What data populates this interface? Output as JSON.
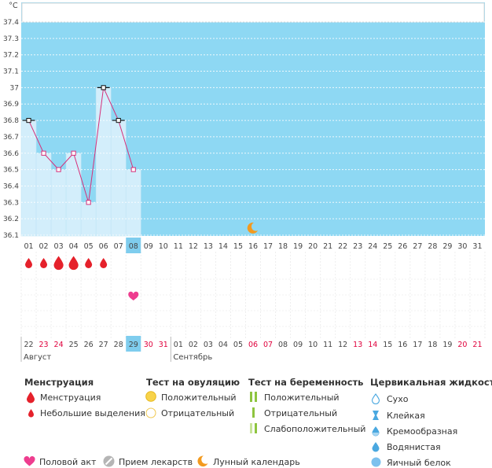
{
  "chart_data": {
    "type": "line",
    "unit": "°C",
    "ylim": [
      36.1,
      37.4
    ],
    "y_ticks": [
      "37.4",
      "37.3",
      "37.2",
      "37.1",
      "37",
      "36.9",
      "36.8",
      "36.7",
      "36.6",
      "36.5",
      "36.4",
      "36.3",
      "36.2",
      "36.1"
    ],
    "cycle_days": [
      "01",
      "02",
      "03",
      "04",
      "05",
      "06",
      "07",
      "08",
      "09",
      "10",
      "11",
      "12",
      "13",
      "14",
      "15",
      "16",
      "17",
      "18",
      "19",
      "20",
      "21",
      "22",
      "23",
      "24",
      "25",
      "26",
      "27",
      "28",
      "29",
      "30",
      "31"
    ],
    "temperatures": [
      36.8,
      36.6,
      36.5,
      36.6,
      36.3,
      37.0,
      36.8,
      36.5
    ],
    "today_index": 7,
    "moon_day_index": 15,
    "menstruation": [
      "small",
      "small",
      "heavy",
      "heavy",
      "small",
      "small"
    ],
    "intercourse_day_index": 7,
    "calendar_dates": [
      "22",
      "23",
      "24",
      "25",
      "26",
      "27",
      "28",
      "29",
      "30",
      "31",
      "01",
      "02",
      "03",
      "04",
      "05",
      "06",
      "07",
      "08",
      "09",
      "10",
      "11",
      "12",
      "13",
      "14",
      "15",
      "16",
      "17",
      "18",
      "19",
      "20",
      "21"
    ],
    "weekend_index": [
      1,
      2,
      8,
      9,
      15,
      16,
      22,
      23,
      29,
      30
    ],
    "months": [
      {
        "label": "Август",
        "start_index": 0
      },
      {
        "label": "Сентябрь",
        "start_index": 10
      }
    ],
    "grid": true,
    "colors": {
      "fill": "#8ed8f3",
      "top": "#ffffff",
      "bar": "#d3eefb",
      "line": "#d6307a",
      "today": "#7fcdee",
      "weekend": "#e0003c",
      "drop": "#e5212b",
      "heart": "#ee3d8f",
      "moon": "#f39a1e"
    }
  },
  "legend": {
    "menstruation": {
      "title": "Менструация",
      "items": [
        "Менструация",
        "Небольшие выделения"
      ]
    },
    "ovulation": {
      "title": "Тест на овуляцию",
      "items": [
        "Положительный",
        "Отрицательный"
      ]
    },
    "pregnancy": {
      "title": "Тест на беременность",
      "items": [
        "Положительный",
        "Отрицательный",
        "Слабоположительный"
      ]
    },
    "cervical": {
      "title": "Цервикальная жидкость",
      "items": [
        "Сухо",
        "Клейкая",
        "Кремообразная",
        "Водянистая",
        "Яичный белок"
      ]
    },
    "bottom": {
      "items": [
        "Половой акт",
        "Прием лекарств",
        "Лунный календарь"
      ]
    }
  }
}
